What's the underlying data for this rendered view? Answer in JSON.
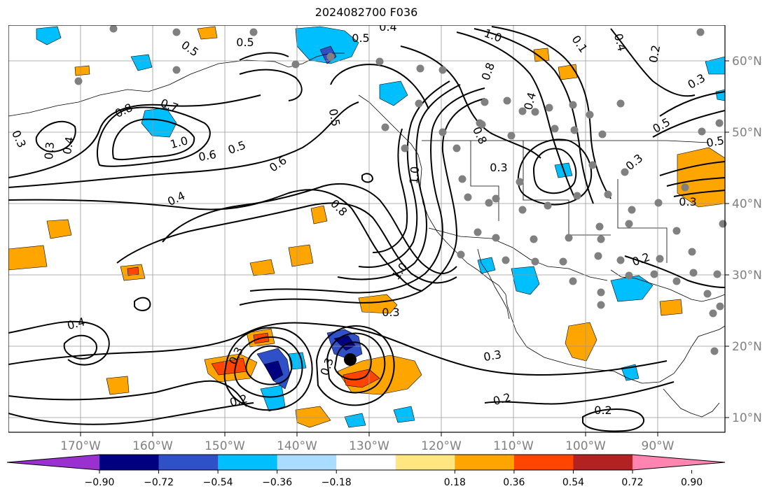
{
  "title": "2024082700 F036",
  "map": {
    "longitude_labels": [
      "170°W",
      "160°W",
      "150°W",
      "140°W",
      "130°W",
      "120°W",
      "110°W",
      "100°W",
      "90°W"
    ],
    "latitude_labels": [
      "60°N",
      "50°N",
      "40°N",
      "30°N",
      "20°N",
      "10°N"
    ],
    "contour_labels": [
      "0.4",
      "0.5",
      "0.5",
      "0.5",
      "0.8",
      "0.7",
      "1.0",
      "0.6",
      "0.5",
      "0.4",
      "0.3",
      "0.3",
      "0.4",
      "0.6",
      "0.5",
      "0.8",
      "1.0",
      "0.8",
      "0.8",
      "1.0",
      "0.3",
      "0.3",
      "0.4",
      "0.3",
      "0.3",
      "0.3",
      "0.3",
      "0.2",
      "0.2",
      "0.2",
      "1.0",
      "0.4",
      "0.2",
      "0.3",
      "0.5",
      "0.5",
      "0.1",
      "0.4",
      "0.2",
      "0.3"
    ],
    "colors": {
      "grid": "#999999",
      "contour": "#000000",
      "coast": "#000000",
      "station_dot": "#808080"
    }
  },
  "colorbar": {
    "tick_labels": [
      "−0.90",
      "−0.72",
      "−0.54",
      "−0.36",
      "−0.18",
      "0.18",
      "0.36",
      "0.54",
      "0.72",
      "0.90"
    ],
    "colors": [
      "#9b30d0",
      "#000080",
      "#3050c8",
      "#00bfff",
      "#aadcff",
      "#ffffff",
      "#ffe680",
      "#ffa500",
      "#ff4500",
      "#b22222",
      "#ff85b0"
    ]
  }
}
